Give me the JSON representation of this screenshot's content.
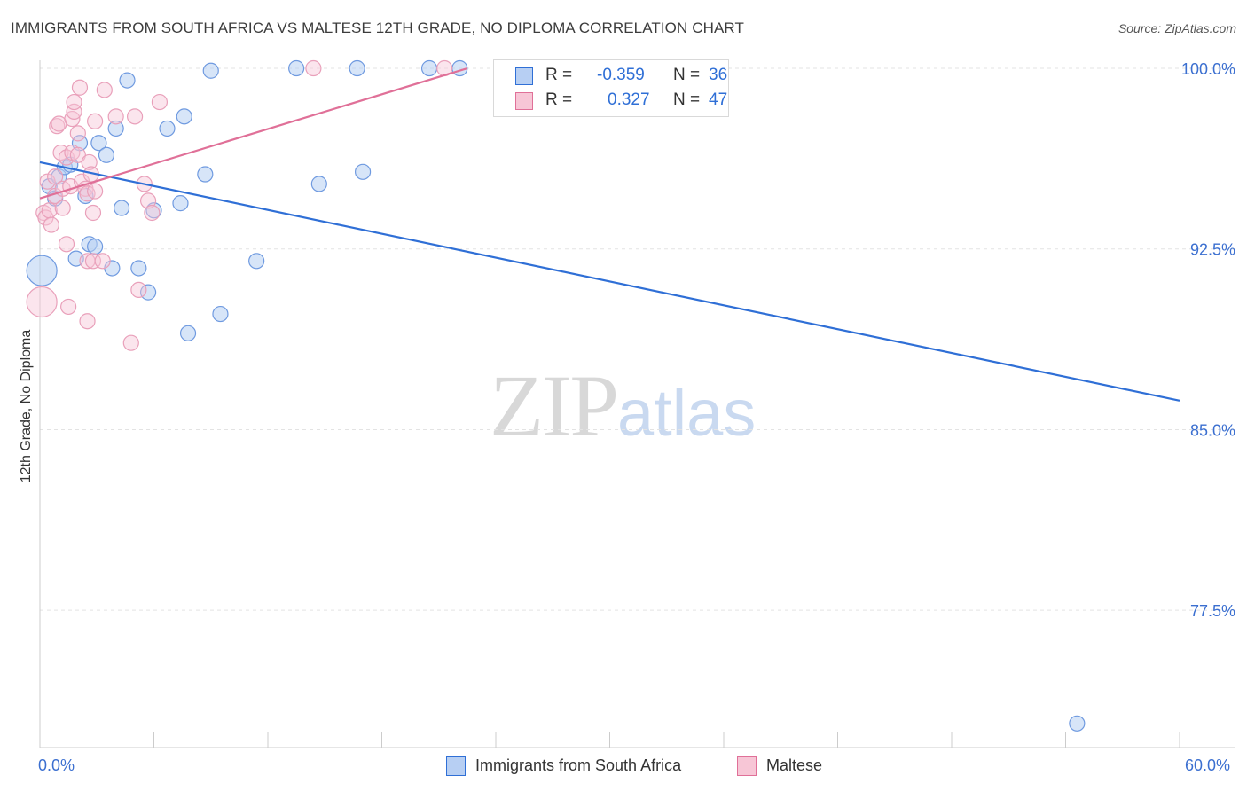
{
  "title": "IMMIGRANTS FROM SOUTH AFRICA VS MALTESE 12TH GRADE, NO DIPLOMA CORRELATION CHART",
  "source": "Source: ZipAtlas.com",
  "watermark": {
    "zip": "ZIP",
    "atlas": "atlas"
  },
  "colors": {
    "blue": "#2f6fd6",
    "blue_fill": "#b7cff3",
    "pink": "#e07098",
    "pink_fill": "#f7c6d6",
    "grid": "#e3e3e3",
    "axis_text": "#3b6fd0"
  },
  "stats": {
    "r_label": "R =",
    "n_label": "N =",
    "blue": {
      "r": "-0.359",
      "n": "36"
    },
    "pink": {
      "r": "0.327",
      "n": "47"
    }
  },
  "chart_data": {
    "type": "scatter",
    "title": "IMMIGRANTS FROM SOUTH AFRICA VS MALTESE 12TH GRADE, NO DIPLOMA CORRELATION CHART",
    "xlabel": "",
    "ylabel": "12th Grade, No Diploma",
    "xlim": [
      0,
      60
    ],
    "ylim": [
      71.8,
      100.7
    ],
    "x_tick_labels": [
      "0.0%",
      "60.0%"
    ],
    "y_ticks": [
      100.0,
      92.5,
      85.0,
      77.5
    ],
    "y_tick_labels": [
      "100.0%",
      "92.5%",
      "85.0%",
      "77.5%"
    ],
    "grid": true,
    "legend_position": "bottom-center",
    "series": [
      {
        "name": "Immigrants from South Africa",
        "color": "#2f6fd6",
        "trend": {
          "x": [
            0,
            60
          ],
          "y": [
            96.1,
            86.2
          ]
        },
        "points": [
          {
            "x": 0.1,
            "y": 91.6,
            "big": true
          },
          {
            "x": 0.5,
            "y": 95.1
          },
          {
            "x": 0.8,
            "y": 94.6
          },
          {
            "x": 1.0,
            "y": 95.5
          },
          {
            "x": 1.3,
            "y": 95.9
          },
          {
            "x": 1.6,
            "y": 96.0
          },
          {
            "x": 2.1,
            "y": 96.9
          },
          {
            "x": 2.4,
            "y": 94.7
          },
          {
            "x": 1.9,
            "y": 92.1
          },
          {
            "x": 2.6,
            "y": 92.7
          },
          {
            "x": 2.9,
            "y": 92.6
          },
          {
            "x": 3.1,
            "y": 96.9
          },
          {
            "x": 3.5,
            "y": 96.4
          },
          {
            "x": 3.8,
            "y": 91.7
          },
          {
            "x": 4.0,
            "y": 97.5
          },
          {
            "x": 4.3,
            "y": 94.2
          },
          {
            "x": 4.6,
            "y": 99.5
          },
          {
            "x": 5.2,
            "y": 91.7
          },
          {
            "x": 5.7,
            "y": 90.7
          },
          {
            "x": 6.0,
            "y": 94.1
          },
          {
            "x": 6.7,
            "y": 97.5
          },
          {
            "x": 7.4,
            "y": 94.4
          },
          {
            "x": 7.6,
            "y": 98.0
          },
          {
            "x": 7.8,
            "y": 89.0
          },
          {
            "x": 8.7,
            "y": 95.6
          },
          {
            "x": 9.0,
            "y": 99.9
          },
          {
            "x": 9.5,
            "y": 89.8
          },
          {
            "x": 11.4,
            "y": 92.0
          },
          {
            "x": 13.5,
            "y": 100.0
          },
          {
            "x": 14.7,
            "y": 95.2
          },
          {
            "x": 16.7,
            "y": 100.0
          },
          {
            "x": 17.0,
            "y": 95.7
          },
          {
            "x": 20.5,
            "y": 100.0
          },
          {
            "x": 22.1,
            "y": 100.0
          },
          {
            "x": 32.6,
            "y": 100.0
          },
          {
            "x": 54.6,
            "y": 72.8
          }
        ]
      },
      {
        "name": "Maltese",
        "color": "#e07098",
        "trend": {
          "x": [
            0,
            22.5
          ],
          "y": [
            94.6,
            100.0
          ]
        },
        "points": [
          {
            "x": 0.1,
            "y": 90.3,
            "big": true
          },
          {
            "x": 0.2,
            "y": 94.0
          },
          {
            "x": 0.3,
            "y": 93.8
          },
          {
            "x": 0.4,
            "y": 95.3
          },
          {
            "x": 0.5,
            "y": 94.1
          },
          {
            "x": 0.6,
            "y": 93.5
          },
          {
            "x": 0.8,
            "y": 95.5
          },
          {
            "x": 0.8,
            "y": 94.7
          },
          {
            "x": 0.9,
            "y": 97.6
          },
          {
            "x": 1.0,
            "y": 97.7
          },
          {
            "x": 1.1,
            "y": 96.5
          },
          {
            "x": 1.2,
            "y": 95.0
          },
          {
            "x": 1.2,
            "y": 94.2
          },
          {
            "x": 1.4,
            "y": 96.3
          },
          {
            "x": 1.4,
            "y": 92.7
          },
          {
            "x": 1.5,
            "y": 90.1
          },
          {
            "x": 1.6,
            "y": 95.1
          },
          {
            "x": 1.7,
            "y": 96.5
          },
          {
            "x": 1.7,
            "y": 97.9
          },
          {
            "x": 1.8,
            "y": 98.2
          },
          {
            "x": 1.8,
            "y": 98.6
          },
          {
            "x": 2.0,
            "y": 97.3
          },
          {
            "x": 2.0,
            "y": 96.4
          },
          {
            "x": 2.2,
            "y": 95.3
          },
          {
            "x": 2.1,
            "y": 99.2
          },
          {
            "x": 2.4,
            "y": 95.0
          },
          {
            "x": 2.5,
            "y": 94.8
          },
          {
            "x": 2.5,
            "y": 92.0
          },
          {
            "x": 2.5,
            "y": 89.5
          },
          {
            "x": 2.6,
            "y": 96.1
          },
          {
            "x": 2.7,
            "y": 95.6
          },
          {
            "x": 2.8,
            "y": 94.0
          },
          {
            "x": 2.8,
            "y": 92.0
          },
          {
            "x": 2.9,
            "y": 94.9
          },
          {
            "x": 2.9,
            "y": 97.8
          },
          {
            "x": 3.3,
            "y": 92.0
          },
          {
            "x": 3.4,
            "y": 99.1
          },
          {
            "x": 4.0,
            "y": 98.0
          },
          {
            "x": 4.8,
            "y": 88.6
          },
          {
            "x": 5.0,
            "y": 98.0
          },
          {
            "x": 5.2,
            "y": 90.8
          },
          {
            "x": 5.5,
            "y": 95.2
          },
          {
            "x": 5.7,
            "y": 94.5
          },
          {
            "x": 5.9,
            "y": 94.0
          },
          {
            "x": 6.3,
            "y": 98.6
          },
          {
            "x": 14.4,
            "y": 100.0
          },
          {
            "x": 21.3,
            "y": 100.0
          }
        ]
      }
    ]
  }
}
